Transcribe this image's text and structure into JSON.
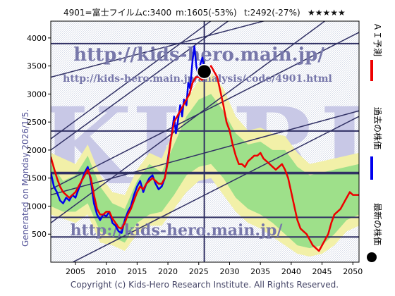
{
  "header": {
    "ticker": "4901=富士フイルム",
    "current": "c:3400",
    "min": "m:1605(-53%)",
    "target": "t:2492(-27%)",
    "stars": "★★★★★"
  },
  "side_text": "Generated on Monday 2026/1/5.",
  "footer": "Copyright (c) Kids-Hero Research Institute. All Rights Reserved.",
  "watermarks": {
    "url": "http://kids-hero.main.jp/",
    "url_small": "http://kids-hero.main.jp/analysis/code/4901.html",
    "url_bottom": "http://kids-hero.main.jp/",
    "big": "KHRI"
  },
  "legend": [
    {
      "label": "ＡＩ予測",
      "color": "#ee0000",
      "kind": "line"
    },
    {
      "label": "過去の株価",
      "color": "#0000ee",
      "kind": "line"
    },
    {
      "label": "最新の株価",
      "color": "#000000",
      "kind": "dot"
    }
  ],
  "chart_data": {
    "type": "line",
    "x_ticks": [
      "2005",
      "2010",
      "2015",
      "2020",
      "2025",
      "2030",
      "2035",
      "2040",
      "2045",
      "2050"
    ],
    "y_ticks": [
      "500",
      "1000",
      "1500",
      "2000",
      "2500",
      "3000",
      "3500",
      "4000"
    ],
    "xlim": [
      2001,
      2051
    ],
    "ylim": [
      0,
      4300
    ],
    "latest_point": {
      "x": 2025.9,
      "y": 3400
    },
    "current_marker_year": 2025.9,
    "horizontal_levels": [
      3900,
      2340,
      1600,
      1580,
      800,
      450
    ],
    "channel_lines": [
      {
        "start": [
          2001,
          700
        ],
        "end": [
          2051,
          4750
        ]
      },
      {
        "start": [
          2001,
          2200
        ],
        "end": [
          2051,
          6250
        ]
      },
      {
        "start": [
          2001,
          -200
        ],
        "end": [
          2051,
          2600
        ]
      },
      {
        "start": [
          2001,
          1300
        ],
        "end": [
          2051,
          4100
        ]
      },
      {
        "start": [
          2001,
          2000
        ],
        "end": [
          2051,
          6000
        ]
      },
      {
        "start": [
          2001,
          1200
        ],
        "end": [
          2051,
          2700
        ]
      },
      {
        "start": [
          2001,
          3300
        ],
        "end": [
          2051,
          4750
        ]
      }
    ],
    "series": [
      {
        "name": "過去の株価",
        "color": "#0000ee",
        "points": [
          [
            2001,
            1600
          ],
          [
            2001.5,
            1350
          ],
          [
            2002,
            1250
          ],
          [
            2002.5,
            1100
          ],
          [
            2003,
            1050
          ],
          [
            2003.5,
            1150
          ],
          [
            2004,
            1100
          ],
          [
            2004.5,
            1200
          ],
          [
            2005,
            1150
          ],
          [
            2005.5,
            1300
          ],
          [
            2006,
            1450
          ],
          [
            2006.5,
            1600
          ],
          [
            2007,
            1700
          ],
          [
            2007.5,
            1450
          ],
          [
            2008,
            1050
          ],
          [
            2008.5,
            850
          ],
          [
            2009,
            750
          ],
          [
            2009.5,
            850
          ],
          [
            2010,
            820
          ],
          [
            2010.5,
            900
          ],
          [
            2011,
            700
          ],
          [
            2011.5,
            650
          ],
          [
            2012,
            550
          ],
          [
            2012.5,
            520
          ],
          [
            2013,
            750
          ],
          [
            2013.5,
            900
          ],
          [
            2014,
            1000
          ],
          [
            2014.5,
            1200
          ],
          [
            2015,
            1350
          ],
          [
            2015.5,
            1450
          ],
          [
            2016,
            1250
          ],
          [
            2016.5,
            1400
          ],
          [
            2017,
            1500
          ],
          [
            2017.5,
            1550
          ],
          [
            2018,
            1400
          ],
          [
            2018.5,
            1300
          ],
          [
            2019,
            1350
          ],
          [
            2019.5,
            1500
          ],
          [
            2020,
            1850
          ],
          [
            2020.5,
            2200
          ],
          [
            2021,
            2600
          ],
          [
            2021.3,
            2300
          ],
          [
            2021.6,
            2500
          ],
          [
            2022,
            2800
          ],
          [
            2022.3,
            2600
          ],
          [
            2022.6,
            2900
          ],
          [
            2023,
            2800
          ],
          [
            2023.3,
            3200
          ],
          [
            2023.6,
            3100
          ],
          [
            2024,
            3600
          ],
          [
            2024.3,
            3850
          ],
          [
            2024.6,
            3500
          ],
          [
            2025,
            3300
          ],
          [
            2025.3,
            3550
          ],
          [
            2025.6,
            3650
          ],
          [
            2025.9,
            3400
          ]
        ]
      },
      {
        "name": "ＡＩ予測",
        "color": "#ee0000",
        "points": [
          [
            2001,
            1880
          ],
          [
            2001.3,
            1760
          ],
          [
            2001.6,
            1650
          ],
          [
            2002,
            1500
          ],
          [
            2002.5,
            1350
          ],
          [
            2003,
            1250
          ],
          [
            2003.5,
            1200
          ],
          [
            2004,
            1150
          ],
          [
            2004.5,
            1200
          ],
          [
            2005,
            1250
          ],
          [
            2005.5,
            1350
          ],
          [
            2006,
            1450
          ],
          [
            2006.5,
            1550
          ],
          [
            2007,
            1650
          ],
          [
            2007.5,
            1500
          ],
          [
            2008,
            1200
          ],
          [
            2008.5,
            950
          ],
          [
            2009,
            850
          ],
          [
            2009.5,
            850
          ],
          [
            2010,
            900
          ],
          [
            2010.5,
            900
          ],
          [
            2011,
            780
          ],
          [
            2011.5,
            700
          ],
          [
            2012,
            620
          ],
          [
            2012.5,
            600
          ],
          [
            2013,
            700
          ],
          [
            2013.5,
            850
          ],
          [
            2014,
            950
          ],
          [
            2014.5,
            1100
          ],
          [
            2015,
            1250
          ],
          [
            2015.5,
            1350
          ],
          [
            2016,
            1300
          ],
          [
            2016.5,
            1400
          ],
          [
            2017,
            1450
          ],
          [
            2017.5,
            1500
          ],
          [
            2018,
            1450
          ],
          [
            2018.5,
            1400
          ],
          [
            2019,
            1400
          ],
          [
            2019.5,
            1500
          ],
          [
            2020,
            1800
          ],
          [
            2020.5,
            2200
          ],
          [
            2021,
            2500
          ],
          [
            2021.5,
            2600
          ],
          [
            2022,
            2700
          ],
          [
            2022.5,
            2800
          ],
          [
            2023,
            2900
          ],
          [
            2023.5,
            3000
          ],
          [
            2024,
            3200
          ],
          [
            2024.5,
            3300
          ],
          [
            2025,
            3300
          ],
          [
            2025.5,
            3250
          ],
          [
            2026,
            3300
          ],
          [
            2026.5,
            3400
          ],
          [
            2027,
            3500
          ],
          [
            2027.5,
            3400
          ],
          [
            2028,
            3300
          ],
          [
            2028.5,
            3050
          ],
          [
            2029,
            2800
          ],
          [
            2029.5,
            2500
          ],
          [
            2030,
            2350
          ],
          [
            2030.5,
            2100
          ],
          [
            2031,
            1900
          ],
          [
            2031.5,
            1750
          ],
          [
            2032,
            1750
          ],
          [
            2032.5,
            1700
          ],
          [
            2033,
            1800
          ],
          [
            2033.5,
            1850
          ],
          [
            2034,
            1900
          ],
          [
            2034.5,
            1900
          ],
          [
            2035,
            1950
          ],
          [
            2035.5,
            1850
          ],
          [
            2036,
            1800
          ],
          [
            2036.5,
            1750
          ],
          [
            2037,
            1700
          ],
          [
            2037.5,
            1650
          ],
          [
            2038,
            1700
          ],
          [
            2038.5,
            1750
          ],
          [
            2039,
            1650
          ],
          [
            2039.5,
            1500
          ],
          [
            2040,
            1250
          ],
          [
            2040.5,
            1000
          ],
          [
            2041,
            750
          ],
          [
            2041.5,
            600
          ],
          [
            2042,
            550
          ],
          [
            2042.5,
            500
          ],
          [
            2043,
            400
          ],
          [
            2043.5,
            300
          ],
          [
            2044,
            250
          ],
          [
            2044.5,
            200
          ],
          [
            2045,
            300
          ],
          [
            2045.5,
            400
          ],
          [
            2046,
            500
          ],
          [
            2046.5,
            700
          ],
          [
            2047,
            850
          ],
          [
            2047.5,
            900
          ],
          [
            2048,
            950
          ],
          [
            2048.5,
            1050
          ],
          [
            2049,
            1150
          ],
          [
            2049.5,
            1250
          ],
          [
            2050,
            1200
          ],
          [
            2050.5,
            1200
          ],
          [
            2051,
            1200
          ]
        ]
      }
    ],
    "green_band": {
      "upper": [
        [
          2001,
          1750
        ],
        [
          2003,
          1450
        ],
        [
          2005,
          1550
        ],
        [
          2007,
          1900
        ],
        [
          2009,
          1350
        ],
        [
          2011,
          1050
        ],
        [
          2013,
          950
        ],
        [
          2015,
          1450
        ],
        [
          2017,
          1750
        ],
        [
          2019,
          1600
        ],
        [
          2021,
          2100
        ],
        [
          2023,
          2600
        ],
        [
          2025,
          2900
        ],
        [
          2027,
          3000
        ],
        [
          2029,
          2700
        ],
        [
          2031,
          2300
        ],
        [
          2033,
          2100
        ],
        [
          2035,
          2150
        ],
        [
          2037,
          2000
        ],
        [
          2039,
          2000
        ],
        [
          2041,
          1700
        ],
        [
          2043,
          1550
        ],
        [
          2045,
          1600
        ],
        [
          2047,
          1650
        ],
        [
          2049,
          1700
        ],
        [
          2051,
          1750
        ]
      ],
      "lower": [
        [
          2001,
          1000
        ],
        [
          2003,
          900
        ],
        [
          2005,
          900
        ],
        [
          2007,
          1050
        ],
        [
          2009,
          550
        ],
        [
          2011,
          450
        ],
        [
          2013,
          350
        ],
        [
          2015,
          700
        ],
        [
          2017,
          850
        ],
        [
          2019,
          900
        ],
        [
          2021,
          1200
        ],
        [
          2023,
          1550
        ],
        [
          2025,
          1700
        ],
        [
          2027,
          1750
        ],
        [
          2029,
          1500
        ],
        [
          2031,
          1150
        ],
        [
          2033,
          950
        ],
        [
          2035,
          850
        ],
        [
          2037,
          700
        ],
        [
          2039,
          500
        ],
        [
          2041,
          300
        ],
        [
          2043,
          250
        ],
        [
          2045,
          300
        ],
        [
          2047,
          500
        ],
        [
          2049,
          750
        ],
        [
          2051,
          850
        ]
      ]
    },
    "yellow_band": {
      "upper": [
        [
          2001,
          1950
        ],
        [
          2005,
          1750
        ],
        [
          2007,
          2100
        ],
        [
          2009,
          1550
        ],
        [
          2011,
          1250
        ],
        [
          2013,
          1200
        ],
        [
          2015,
          1650
        ],
        [
          2017,
          1950
        ],
        [
          2019,
          1850
        ],
        [
          2021,
          2350
        ],
        [
          2023,
          2900
        ],
        [
          2025,
          3250
        ],
        [
          2027,
          3400
        ],
        [
          2029,
          3100
        ],
        [
          2031,
          2600
        ],
        [
          2033,
          2350
        ],
        [
          2035,
          2400
        ],
        [
          2037,
          2300
        ],
        [
          2039,
          2250
        ],
        [
          2041,
          1950
        ],
        [
          2043,
          1750
        ],
        [
          2045,
          1800
        ],
        [
          2047,
          1850
        ],
        [
          2049,
          1900
        ],
        [
          2051,
          1950
        ]
      ],
      "lower": [
        [
          2001,
          850
        ],
        [
          2005,
          700
        ],
        [
          2007,
          850
        ],
        [
          2009,
          350
        ],
        [
          2011,
          300
        ],
        [
          2013,
          200
        ],
        [
          2015,
          500
        ],
        [
          2017,
          650
        ],
        [
          2019,
          650
        ],
        [
          2021,
          950
        ],
        [
          2023,
          1250
        ],
        [
          2025,
          1450
        ],
        [
          2027,
          1500
        ],
        [
          2029,
          1200
        ],
        [
          2031,
          900
        ],
        [
          2033,
          700
        ],
        [
          2035,
          600
        ],
        [
          2037,
          450
        ],
        [
          2039,
          300
        ],
        [
          2041,
          150
        ],
        [
          2043,
          100
        ],
        [
          2045,
          150
        ],
        [
          2047,
          300
        ],
        [
          2049,
          550
        ],
        [
          2051,
          650
        ]
      ]
    }
  }
}
